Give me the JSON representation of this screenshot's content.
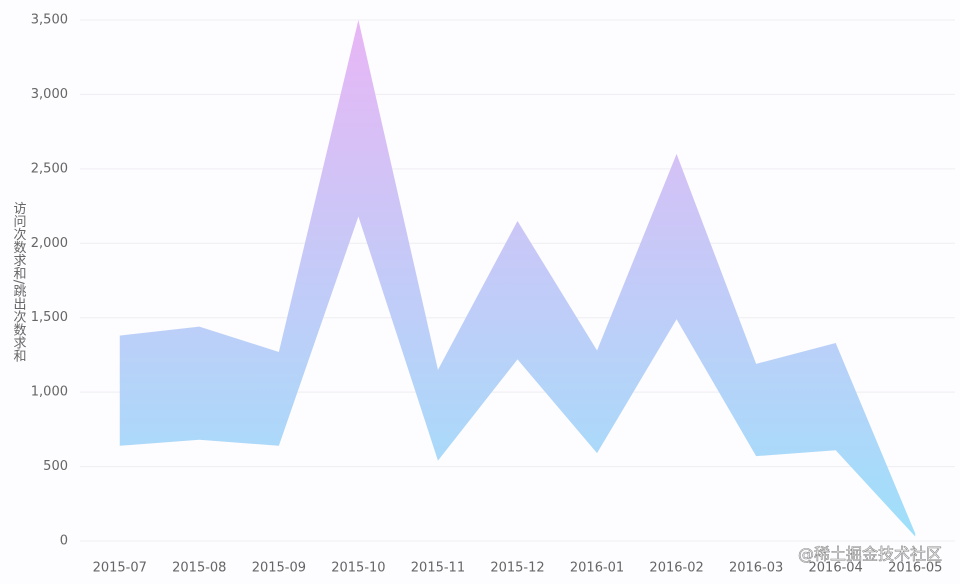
{
  "chart_data": {
    "type": "area_range",
    "y_label": "访问次数求和/跳出次数求和",
    "watermark": "@稀土掘金技术社区",
    "categories": [
      "2015-07",
      "2015-08",
      "2015-09",
      "2015-10",
      "2015-11",
      "2015-12",
      "2016-01",
      "2016-02",
      "2016-03",
      "2016-04",
      "2016-05"
    ],
    "series": [
      {
        "values": [
          1380,
          1440,
          1270,
          3500,
          1150,
          2150,
          1280,
          2600,
          1190,
          1330,
          50
        ]
      },
      {
        "values": [
          640,
          680,
          640,
          2180,
          540,
          1220,
          590,
          1490,
          570,
          610,
          30
        ]
      }
    ],
    "colors": [
      "#e8b6f5",
      "#9ee0fa"
    ],
    "ylim": [
      0,
      3500
    ],
    "yticks": [
      0,
      {
        "value": 500,
        "label": "500"
      },
      {
        "value": 1000,
        "label": "1,000"
      },
      {
        "value": 1500,
        "label": "1,500"
      },
      {
        "value": 2000,
        "label": "2,000"
      },
      {
        "value": 2500,
        "label": "2,500"
      },
      {
        "value": 3000,
        "label": "3,000"
      },
      {
        "value": 3500,
        "label": "3,500"
      }
    ],
    "grid": true
  }
}
